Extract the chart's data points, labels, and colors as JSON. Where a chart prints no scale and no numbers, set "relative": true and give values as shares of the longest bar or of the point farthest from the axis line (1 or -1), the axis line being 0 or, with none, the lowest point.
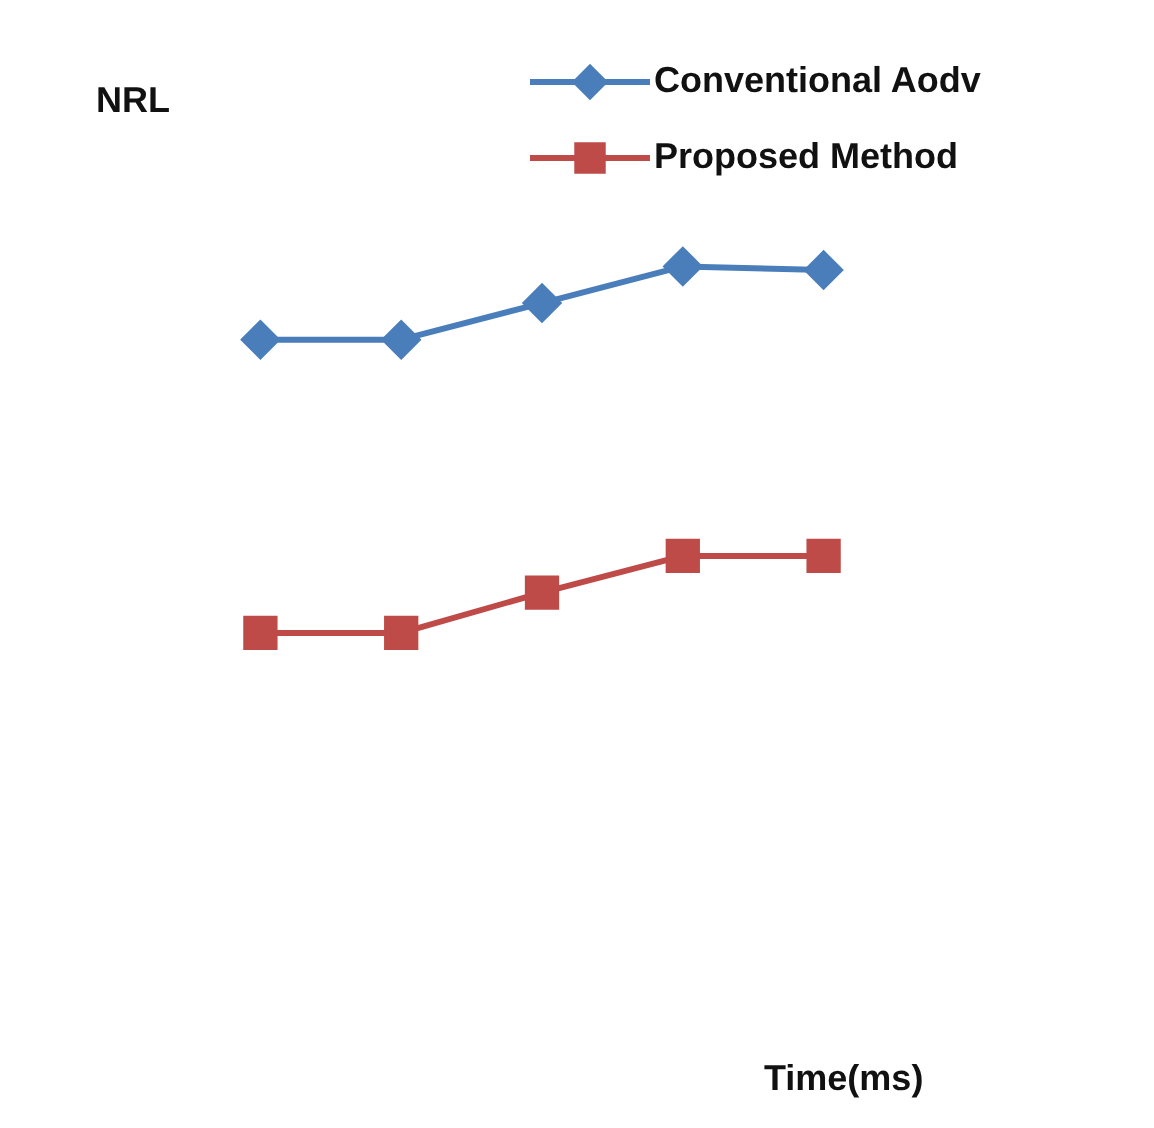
{
  "chart_data": {
    "type": "line",
    "relative": true,
    "ylabel": "NRL",
    "annotations": [
      "Time(ms)"
    ],
    "categories": [
      null,
      null,
      null,
      null,
      null
    ],
    "legend": "top right",
    "line_style": "solid",
    "series": [
      {
        "name": "Conventional Aodv",
        "color": "#4a7ebb",
        "marker": "diamond",
        "values": [
          0.8,
          0.8,
          0.9,
          1.0,
          0.99
        ]
      },
      {
        "name": "Proposed Method",
        "color": "#be4b48",
        "marker": "square",
        "values": [
          0,
          0,
          0.11,
          0.21,
          0.21
        ]
      }
    ]
  }
}
